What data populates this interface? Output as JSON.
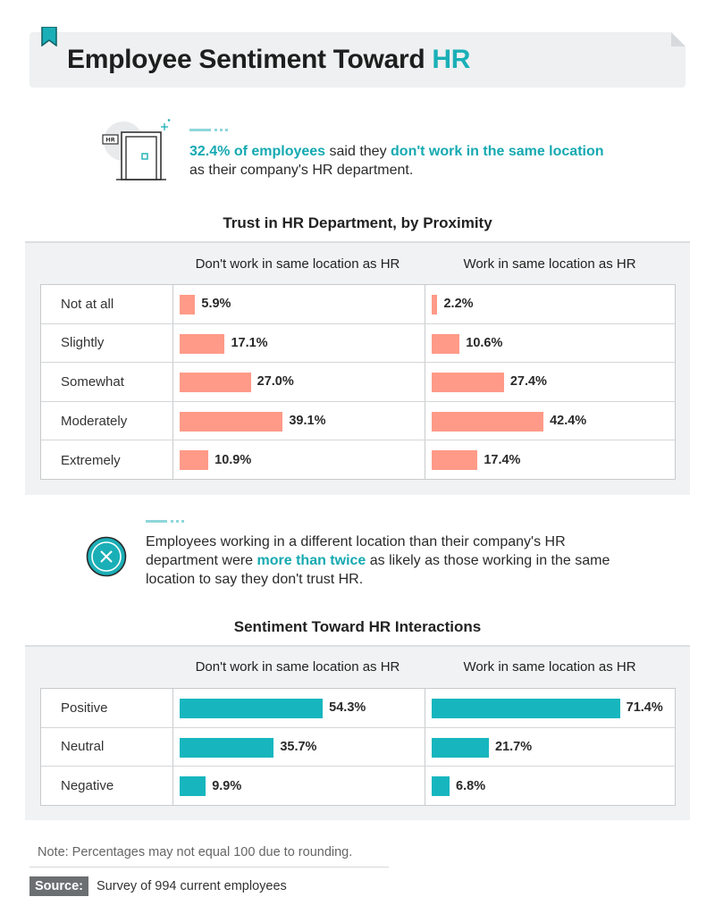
{
  "header": {
    "title_main": "Employee Sentiment Toward ",
    "title_accent": "HR"
  },
  "callout1": {
    "stat": "32.4% of employees",
    "mid": " said they ",
    "highlight": "don't work in the same location",
    "rest": "as their company's HR department.",
    "door_sign": "HR"
  },
  "colors": {
    "accent": "#1aafb7",
    "trust_bar": "#ff9a88",
    "sentiment_bar": "#17b6be"
  },
  "chart_data": [
    {
      "type": "bar",
      "title": "Trust in HR Department, by Proximity",
      "categories": [
        "Not at all",
        "Slightly",
        "Somewhat",
        "Moderately",
        "Extremely"
      ],
      "series": [
        {
          "name": "Don't work in same location as HR",
          "values": [
            5.9,
            17.1,
            27.0,
            39.1,
            10.9
          ],
          "labels": [
            "5.9%",
            "17.1%",
            "27.0%",
            "39.1%",
            "10.9%"
          ]
        },
        {
          "name": "Work in same location as HR",
          "values": [
            2.2,
            10.6,
            27.4,
            42.4,
            17.4
          ],
          "labels": [
            "2.2%",
            "10.6%",
            "27.4%",
            "42.4%",
            "17.4%"
          ]
        }
      ],
      "unit": "%"
    },
    {
      "type": "bar",
      "title": "Sentiment Toward HR Interactions",
      "categories": [
        "Positive",
        "Neutral",
        "Negative"
      ],
      "series": [
        {
          "name": "Don't work in same location as HR",
          "values": [
            54.3,
            35.7,
            9.9
          ],
          "labels": [
            "54.3%",
            "35.7%",
            "9.9%"
          ]
        },
        {
          "name": "Work in same location as HR",
          "values": [
            71.4,
            21.7,
            6.8
          ],
          "labels": [
            "71.4%",
            "21.7%",
            "6.8%"
          ]
        }
      ],
      "unit": "%"
    }
  ],
  "callout2": {
    "pre": "Employees working in a different location than their company's HR department were ",
    "highlight": "more than twice",
    "post": " as likely as those working in the same location to say they don't trust HR."
  },
  "footer": {
    "note": "Note: Percentages may not equal 100 due to rounding.",
    "source_label": "Source:",
    "source_text": "Survey of 994 current employees"
  }
}
